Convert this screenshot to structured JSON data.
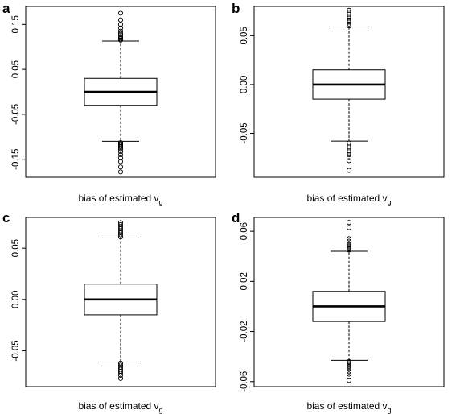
{
  "chart_data": [
    {
      "type": "box",
      "panel": "a",
      "xlabel": "bias of estimated v",
      "xlabel_sub": "g",
      "ylim": [
        -0.19,
        0.19
      ],
      "yticks": [
        -0.15,
        -0.05,
        0.05,
        0.15
      ],
      "ytick_labels": [
        "-0.15",
        "-0.05",
        "0.05",
        "0.15"
      ],
      "box": {
        "q1": -0.03,
        "median": 0.0,
        "q3": 0.03,
        "whisker_low": -0.11,
        "whisker_high": 0.113
      },
      "outliers_high": [
        0.115,
        0.118,
        0.12,
        0.123,
        0.127,
        0.13,
        0.135,
        0.142,
        0.15,
        0.16,
        0.175
      ],
      "outliers_low": [
        -0.113,
        -0.116,
        -0.119,
        -0.122,
        -0.125,
        -0.128,
        -0.133,
        -0.14,
        -0.147,
        -0.155,
        -0.167,
        -0.178
      ]
    },
    {
      "type": "box",
      "panel": "b",
      "xlabel": "bias of estimated v",
      "xlabel_sub": "g",
      "ylim": [
        -0.095,
        0.08
      ],
      "yticks": [
        -0.05,
        0.0,
        0.05
      ],
      "ytick_labels": [
        "-0.05",
        "0.00",
        "0.05"
      ],
      "box": {
        "q1": -0.015,
        "median": 0.0,
        "q3": 0.015,
        "whisker_low": -0.058,
        "whisker_high": 0.059
      },
      "outliers_high": [
        0.06,
        0.062,
        0.064,
        0.066,
        0.068,
        0.07,
        0.072,
        0.074,
        0.076
      ],
      "outliers_low": [
        -0.06,
        -0.062,
        -0.064,
        -0.066,
        -0.068,
        -0.07,
        -0.072,
        -0.075,
        -0.078,
        -0.088
      ]
    },
    {
      "type": "box",
      "panel": "c",
      "xlabel": "bias of estimated v",
      "xlabel_sub": "g",
      "ylim": [
        -0.085,
        0.08
      ],
      "yticks": [
        -0.05,
        0.0,
        0.05
      ],
      "ytick_labels": [
        "-0.05",
        "0.00",
        "0.05"
      ],
      "box": {
        "q1": -0.015,
        "median": 0.0,
        "q3": 0.015,
        "whisker_low": -0.061,
        "whisker_high": 0.06
      },
      "outliers_high": [
        0.061,
        0.063,
        0.065,
        0.067,
        0.069,
        0.071,
        0.073,
        0.075
      ],
      "outliers_low": [
        -0.062,
        -0.064,
        -0.066,
        -0.068,
        -0.07,
        -0.072,
        -0.074,
        -0.077
      ]
    },
    {
      "type": "box",
      "panel": "d",
      "xlabel": "bias of estimated v",
      "xlabel_sub": "g",
      "ylim": [
        -0.064,
        0.071
      ],
      "yticks": [
        -0.06,
        -0.02,
        0.02,
        0.06
      ],
      "ytick_labels": [
        "-0.06",
        "-0.02",
        "0.02",
        "0.06"
      ],
      "box": {
        "q1": -0.012,
        "median": 0.0,
        "q3": 0.012,
        "whisker_low": -0.043,
        "whisker_high": 0.044
      },
      "outliers_high": [
        0.045,
        0.046,
        0.047,
        0.048,
        0.049,
        0.05,
        0.052,
        0.054,
        0.063,
        0.067
      ],
      "outliers_low": [
        -0.044,
        -0.045,
        -0.046,
        -0.047,
        -0.048,
        -0.049,
        -0.05,
        -0.052,
        -0.054,
        -0.056,
        -0.059
      ]
    }
  ]
}
